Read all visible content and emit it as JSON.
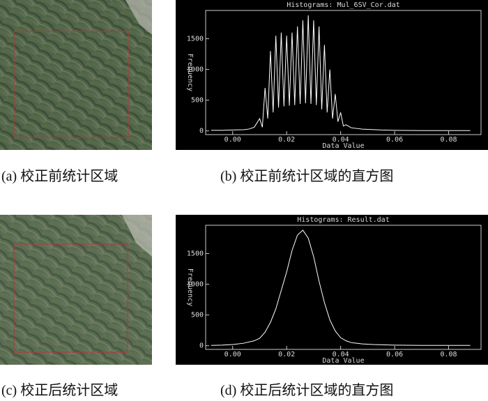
{
  "chart_data": [
    {
      "type": "line",
      "title": "Histograms: Mul_6SV_Cor.dat",
      "xlabel": "Data Value",
      "ylabel": "Frequency",
      "color": "#ffffff",
      "x": [
        -0.008,
        -0.004,
        0.0,
        0.004,
        0.006,
        0.008,
        0.01,
        0.011,
        0.012,
        0.013,
        0.014,
        0.015,
        0.016,
        0.017,
        0.018,
        0.019,
        0.02,
        0.021,
        0.022,
        0.023,
        0.024,
        0.025,
        0.026,
        0.027,
        0.028,
        0.029,
        0.03,
        0.031,
        0.032,
        0.033,
        0.034,
        0.035,
        0.036,
        0.037,
        0.038,
        0.039,
        0.04,
        0.041,
        0.042,
        0.044,
        0.046,
        0.048,
        0.05,
        0.055,
        0.06,
        0.07,
        0.08,
        0.088
      ],
      "values": [
        10,
        10,
        15,
        20,
        30,
        60,
        200,
        60,
        700,
        200,
        1300,
        300,
        1550,
        380,
        1600,
        400,
        1550,
        410,
        1600,
        420,
        1700,
        440,
        1800,
        450,
        1880,
        440,
        1800,
        420,
        1700,
        350,
        1400,
        300,
        1000,
        200,
        600,
        150,
        300,
        80,
        100,
        50,
        40,
        30,
        25,
        15,
        10,
        5,
        5,
        5
      ],
      "xlim": [
        -0.01,
        0.092
      ],
      "ylim": [
        -60,
        1960
      ],
      "xticks": [
        {
          "value": 0,
          "label": "0.00"
        },
        {
          "value": 0.02,
          "label": "0.02"
        },
        {
          "value": 0.04,
          "label": "0.04"
        },
        {
          "value": 0.06,
          "label": "0.06"
        },
        {
          "value": 0.08,
          "label": "0.08"
        }
      ],
      "yticks": [
        0,
        500,
        1000,
        1500
      ]
    },
    {
      "type": "line",
      "title": "Histograms: Result.dat",
      "xlabel": "Data Value",
      "ylabel": "Frequency",
      "color": "#ffffff",
      "x": [
        -0.008,
        -0.004,
        0.0,
        0.004,
        0.008,
        0.01,
        0.012,
        0.014,
        0.016,
        0.018,
        0.02,
        0.022,
        0.024,
        0.026,
        0.028,
        0.03,
        0.032,
        0.034,
        0.036,
        0.038,
        0.04,
        0.042,
        0.044,
        0.048,
        0.052,
        0.06,
        0.07,
        0.08,
        0.088
      ],
      "values": [
        5,
        10,
        20,
        40,
        80,
        120,
        220,
        380,
        600,
        900,
        1200,
        1550,
        1800,
        1880,
        1750,
        1450,
        1050,
        700,
        420,
        240,
        130,
        80,
        50,
        30,
        20,
        10,
        5,
        5,
        5
      ],
      "xlim": [
        -0.01,
        0.092
      ],
      "ylim": [
        -60,
        1960
      ],
      "xticks": [
        {
          "value": 0,
          "label": "0.00"
        },
        {
          "value": 0.02,
          "label": "0.02"
        },
        {
          "value": 0.04,
          "label": "0.04"
        },
        {
          "value": 0.06,
          "label": "0.06"
        },
        {
          "value": 0.08,
          "label": "0.08"
        }
      ],
      "yticks": [
        0,
        500,
        1000,
        1500
      ]
    }
  ],
  "captions": [
    "(a) 校正前统计区域",
    "(b) 校正前统计区域的直方图",
    "(c) 校正后统计区域",
    "(d) 校正后统计区域的直方图"
  ]
}
